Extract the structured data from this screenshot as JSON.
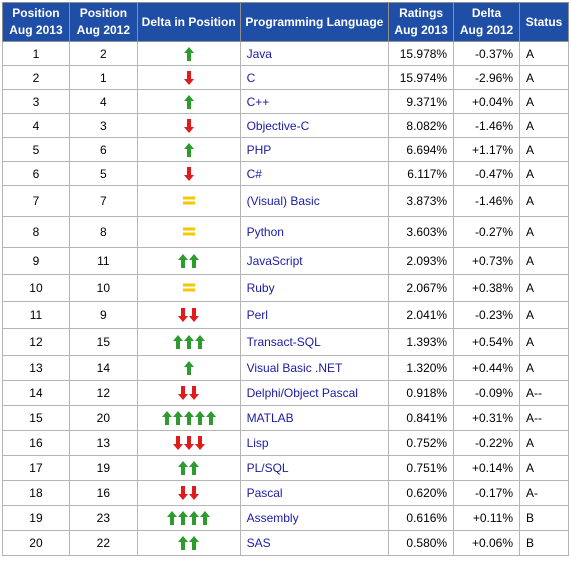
{
  "headers": {
    "pos2013": [
      "Position",
      "Aug 2013"
    ],
    "pos2012": [
      "Position",
      "Aug 2012"
    ],
    "delta_pos": "Delta in Position",
    "language": "Programming Language",
    "ratings": [
      "Ratings",
      "Aug 2013"
    ],
    "delta": [
      "Delta",
      "Aug 2012"
    ],
    "status": "Status"
  },
  "colors": {
    "header_bg": "#1f4ea6",
    "up": "#2e9b2e",
    "down": "#e01b1b",
    "same": "#f5c800",
    "link": "#1a1aa6"
  },
  "rows": [
    {
      "pos2013": "1",
      "pos2012": "2",
      "dir": "up",
      "count": 1,
      "lang": "Java",
      "rating": "15.978%",
      "delta": "-0.37%",
      "status": "A"
    },
    {
      "pos2013": "2",
      "pos2012": "1",
      "dir": "down",
      "count": 1,
      "lang": "C",
      "rating": "15.974%",
      "delta": "-2.96%",
      "status": "A"
    },
    {
      "pos2013": "3",
      "pos2012": "4",
      "dir": "up",
      "count": 1,
      "lang": "C++",
      "rating": "9.371%",
      "delta": "+0.04%",
      "status": "A"
    },
    {
      "pos2013": "4",
      "pos2012": "3",
      "dir": "down",
      "count": 1,
      "lang": "Objective-C",
      "rating": "8.082%",
      "delta": "-1.46%",
      "status": "A"
    },
    {
      "pos2013": "5",
      "pos2012": "6",
      "dir": "up",
      "count": 1,
      "lang": "PHP",
      "rating": "6.694%",
      "delta": "+1.17%",
      "status": "A"
    },
    {
      "pos2013": "6",
      "pos2012": "5",
      "dir": "down",
      "count": 1,
      "lang": "C#",
      "rating": "6.117%",
      "delta": "-0.47%",
      "status": "A"
    },
    {
      "pos2013": "7",
      "pos2012": "7",
      "dir": "same",
      "count": 1,
      "lang": "(Visual) Basic",
      "rating": "3.873%",
      "delta": "-1.46%",
      "status": "A"
    },
    {
      "pos2013": "8",
      "pos2012": "8",
      "dir": "same",
      "count": 1,
      "lang": "Python",
      "rating": "3.603%",
      "delta": "-0.27%",
      "status": "A"
    },
    {
      "pos2013": "9",
      "pos2012": "11",
      "dir": "up",
      "count": 2,
      "lang": "JavaScript",
      "rating": "2.093%",
      "delta": "+0.73%",
      "status": "A"
    },
    {
      "pos2013": "10",
      "pos2012": "10",
      "dir": "same",
      "count": 1,
      "lang": "Ruby",
      "rating": "2.067%",
      "delta": "+0.38%",
      "status": "A"
    },
    {
      "pos2013": "11",
      "pos2012": "9",
      "dir": "down",
      "count": 2,
      "lang": "Perl",
      "rating": "2.041%",
      "delta": "-0.23%",
      "status": "A"
    },
    {
      "pos2013": "12",
      "pos2012": "15",
      "dir": "up",
      "count": 3,
      "lang": "Transact-SQL",
      "rating": "1.393%",
      "delta": "+0.54%",
      "status": "A"
    },
    {
      "pos2013": "13",
      "pos2012": "14",
      "dir": "up",
      "count": 1,
      "lang": "Visual Basic .NET",
      "rating": "1.320%",
      "delta": "+0.44%",
      "status": "A"
    },
    {
      "pos2013": "14",
      "pos2012": "12",
      "dir": "down",
      "count": 2,
      "lang": "Delphi/Object Pascal",
      "rating": "0.918%",
      "delta": "-0.09%",
      "status": "A--"
    },
    {
      "pos2013": "15",
      "pos2012": "20",
      "dir": "up",
      "count": 5,
      "lang": "MATLAB",
      "rating": "0.841%",
      "delta": "+0.31%",
      "status": "A--"
    },
    {
      "pos2013": "16",
      "pos2012": "13",
      "dir": "down",
      "count": 3,
      "lang": "Lisp",
      "rating": "0.752%",
      "delta": "-0.22%",
      "status": "A"
    },
    {
      "pos2013": "17",
      "pos2012": "19",
      "dir": "up",
      "count": 2,
      "lang": "PL/SQL",
      "rating": "0.751%",
      "delta": "+0.14%",
      "status": "A"
    },
    {
      "pos2013": "18",
      "pos2012": "16",
      "dir": "down",
      "count": 2,
      "lang": "Pascal",
      "rating": "0.620%",
      "delta": "-0.17%",
      "status": "A-"
    },
    {
      "pos2013": "19",
      "pos2012": "23",
      "dir": "up",
      "count": 4,
      "lang": "Assembly",
      "rating": "0.616%",
      "delta": "+0.11%",
      "status": "B"
    },
    {
      "pos2013": "20",
      "pos2012": "22",
      "dir": "up",
      "count": 2,
      "lang": "SAS",
      "rating": "0.580%",
      "delta": "+0.06%",
      "status": "B"
    }
  ]
}
